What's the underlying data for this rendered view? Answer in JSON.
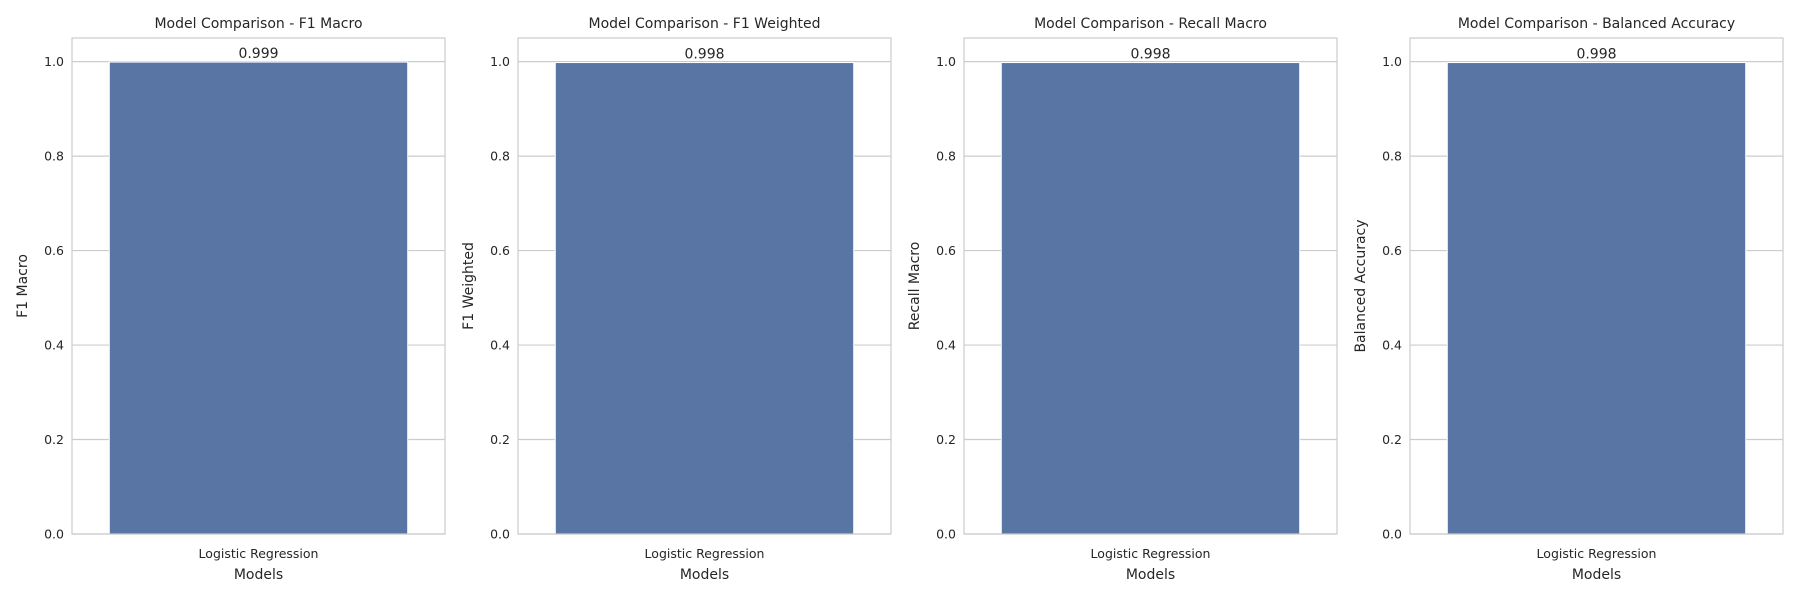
{
  "chart_data": [
    {
      "type": "bar",
      "title": "Model Comparison - F1 Macro",
      "xlabel": "Models",
      "ylabel": "F1 Macro",
      "categories": [
        "Logistic Regression"
      ],
      "values": [
        0.999
      ],
      "data_labels": [
        "0.999"
      ],
      "ylim": [
        0,
        1.05
      ],
      "yticks": [
        "0.0",
        "0.2",
        "0.4",
        "0.6",
        "0.8",
        "1.0"
      ],
      "grid": "horizontal",
      "bar_color": "#5975a4"
    },
    {
      "type": "bar",
      "title": "Model Comparison - F1 Weighted",
      "xlabel": "Models",
      "ylabel": "F1 Weighted",
      "categories": [
        "Logistic Regression"
      ],
      "values": [
        0.998
      ],
      "data_labels": [
        "0.998"
      ],
      "ylim": [
        0,
        1.05
      ],
      "yticks": [
        "0.0",
        "0.2",
        "0.4",
        "0.6",
        "0.8",
        "1.0"
      ],
      "grid": "horizontal",
      "bar_color": "#5975a4"
    },
    {
      "type": "bar",
      "title": "Model Comparison - Recall Macro",
      "xlabel": "Models",
      "ylabel": "Recall Macro",
      "categories": [
        "Logistic Regression"
      ],
      "values": [
        0.998
      ],
      "data_labels": [
        "0.998"
      ],
      "ylim": [
        0,
        1.05
      ],
      "yticks": [
        "0.0",
        "0.2",
        "0.4",
        "0.6",
        "0.8",
        "1.0"
      ],
      "grid": "horizontal",
      "bar_color": "#5975a4"
    },
    {
      "type": "bar",
      "title": "Model Comparison - Balanced Accuracy",
      "xlabel": "Models",
      "ylabel": "Balanced Accuracy",
      "categories": [
        "Logistic Regression"
      ],
      "values": [
        0.998
      ],
      "data_labels": [
        "0.998"
      ],
      "ylim": [
        0,
        1.05
      ],
      "yticks": [
        "0.0",
        "0.2",
        "0.4",
        "0.6",
        "0.8",
        "1.0"
      ],
      "grid": "horizontal",
      "bar_color": "#5975a4"
    }
  ]
}
